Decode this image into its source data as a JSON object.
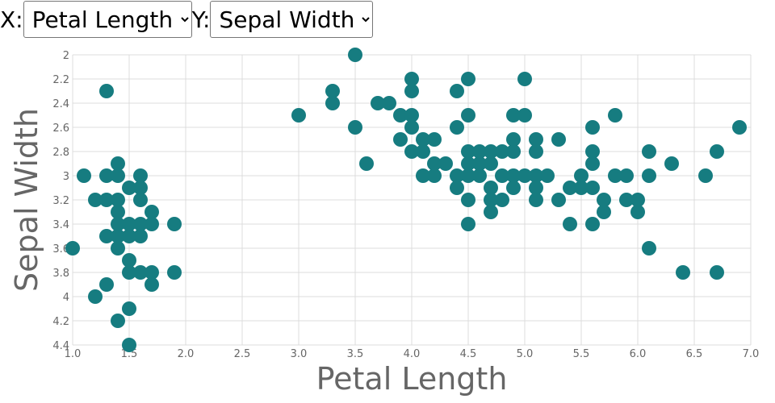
{
  "controls": {
    "x_label": "X:",
    "y_label": "Y:",
    "x_selected": "Petal Length",
    "y_selected": "Sepal Width"
  },
  "chart_data": {
    "type": "scatter",
    "xlabel": "Petal Length",
    "ylabel": "Sepal Width",
    "xlim": [
      1.0,
      7.0
    ],
    "ylim": [
      2.0,
      4.4
    ],
    "y_inverted": true,
    "grid": true,
    "x_ticks": [
      "1.0",
      "1.5",
      "2.0",
      "2.5",
      "3.0",
      "3.5",
      "4.0",
      "4.5",
      "5.0",
      "5.5",
      "6.0",
      "6.5",
      "7.0"
    ],
    "y_ticks": [
      "2",
      "2.2",
      "2.4",
      "2.6",
      "2.8",
      "3",
      "3.2",
      "3.4",
      "3.6",
      "3.8",
      "4",
      "4.2",
      "4.4"
    ],
    "point_color": "#167c80",
    "points": [
      [
        1.0,
        3.6
      ],
      [
        1.1,
        3.0
      ],
      [
        1.2,
        3.2
      ],
      [
        1.2,
        4.0
      ],
      [
        1.3,
        2.3
      ],
      [
        1.3,
        3.0
      ],
      [
        1.3,
        3.2
      ],
      [
        1.3,
        3.5
      ],
      [
        1.3,
        3.9
      ],
      [
        1.4,
        2.9
      ],
      [
        1.4,
        3.0
      ],
      [
        1.4,
        3.2
      ],
      [
        1.4,
        3.3
      ],
      [
        1.4,
        3.4
      ],
      [
        1.4,
        3.5
      ],
      [
        1.4,
        3.6
      ],
      [
        1.4,
        4.2
      ],
      [
        1.5,
        3.1
      ],
      [
        1.5,
        3.4
      ],
      [
        1.5,
        3.5
      ],
      [
        1.5,
        3.7
      ],
      [
        1.5,
        3.8
      ],
      [
        1.5,
        4.1
      ],
      [
        1.5,
        4.4
      ],
      [
        1.6,
        3.0
      ],
      [
        1.6,
        3.1
      ],
      [
        1.6,
        3.2
      ],
      [
        1.6,
        3.4
      ],
      [
        1.6,
        3.5
      ],
      [
        1.6,
        3.8
      ],
      [
        1.7,
        3.3
      ],
      [
        1.7,
        3.4
      ],
      [
        1.7,
        3.8
      ],
      [
        1.7,
        3.9
      ],
      [
        1.9,
        3.4
      ],
      [
        1.9,
        3.8
      ],
      [
        3.0,
        2.5
      ],
      [
        3.3,
        2.3
      ],
      [
        3.3,
        2.4
      ],
      [
        3.5,
        2.0
      ],
      [
        3.5,
        2.6
      ],
      [
        3.6,
        2.9
      ],
      [
        3.7,
        2.4
      ],
      [
        3.8,
        2.4
      ],
      [
        3.9,
        2.5
      ],
      [
        3.9,
        2.7
      ],
      [
        4.0,
        2.2
      ],
      [
        4.0,
        2.3
      ],
      [
        4.0,
        2.5
      ],
      [
        4.0,
        2.6
      ],
      [
        4.0,
        2.8
      ],
      [
        4.1,
        2.7
      ],
      [
        4.1,
        2.8
      ],
      [
        4.1,
        3.0
      ],
      [
        4.2,
        2.7
      ],
      [
        4.2,
        2.9
      ],
      [
        4.2,
        3.0
      ],
      [
        4.3,
        2.9
      ],
      [
        4.4,
        2.3
      ],
      [
        4.4,
        2.6
      ],
      [
        4.4,
        3.0
      ],
      [
        4.4,
        3.1
      ],
      [
        4.5,
        2.2
      ],
      [
        4.5,
        2.5
      ],
      [
        4.5,
        2.8
      ],
      [
        4.5,
        2.9
      ],
      [
        4.5,
        3.0
      ],
      [
        4.5,
        3.2
      ],
      [
        4.5,
        3.4
      ],
      [
        4.6,
        2.8
      ],
      [
        4.6,
        2.9
      ],
      [
        4.6,
        3.0
      ],
      [
        4.7,
        2.8
      ],
      [
        4.7,
        2.9
      ],
      [
        4.7,
        3.1
      ],
      [
        4.7,
        3.2
      ],
      [
        4.7,
        3.3
      ],
      [
        4.8,
        2.8
      ],
      [
        4.8,
        3.0
      ],
      [
        4.8,
        3.2
      ],
      [
        4.9,
        2.5
      ],
      [
        4.9,
        2.7
      ],
      [
        4.9,
        2.8
      ],
      [
        4.9,
        3.0
      ],
      [
        4.9,
        3.1
      ],
      [
        5.0,
        2.2
      ],
      [
        5.0,
        2.5
      ],
      [
        5.0,
        3.0
      ],
      [
        5.1,
        2.7
      ],
      [
        5.1,
        2.8
      ],
      [
        5.1,
        3.0
      ],
      [
        5.1,
        3.1
      ],
      [
        5.1,
        3.2
      ],
      [
        5.2,
        3.0
      ],
      [
        5.3,
        2.7
      ],
      [
        5.3,
        3.2
      ],
      [
        5.4,
        3.1
      ],
      [
        5.4,
        3.4
      ],
      [
        5.5,
        3.0
      ],
      [
        5.5,
        3.1
      ],
      [
        5.6,
        2.6
      ],
      [
        5.6,
        2.8
      ],
      [
        5.6,
        2.9
      ],
      [
        5.6,
        3.1
      ],
      [
        5.6,
        3.4
      ],
      [
        5.7,
        3.2
      ],
      [
        5.7,
        3.3
      ],
      [
        5.8,
        2.5
      ],
      [
        5.8,
        3.0
      ],
      [
        5.9,
        3.0
      ],
      [
        5.9,
        3.2
      ],
      [
        6.0,
        3.2
      ],
      [
        6.0,
        3.3
      ],
      [
        6.1,
        2.8
      ],
      [
        6.1,
        3.0
      ],
      [
        6.1,
        3.6
      ],
      [
        6.3,
        2.9
      ],
      [
        6.4,
        3.8
      ],
      [
        6.6,
        3.0
      ],
      [
        6.7,
        2.8
      ],
      [
        6.7,
        3.8
      ],
      [
        6.9,
        2.6
      ]
    ]
  }
}
